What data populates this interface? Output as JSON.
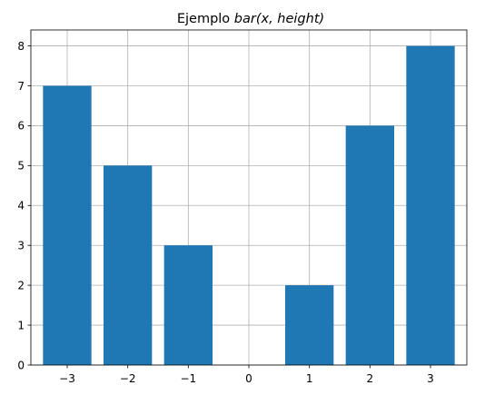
{
  "chart_data": {
    "type": "bar",
    "title_prefix": "Ejemplo ",
    "title_math": "bar(x, height)",
    "xlabel": "",
    "ylabel": "",
    "x": [
      -3,
      -2,
      -1,
      0,
      1,
      2,
      3
    ],
    "values": [
      7,
      5,
      3,
      0,
      2,
      6,
      8
    ],
    "bar_width": 0.8,
    "xlim": [
      -3.6,
      3.6
    ],
    "ylim": [
      0,
      8.4
    ],
    "xticks": [
      -3,
      -2,
      -1,
      0,
      1,
      2,
      3
    ],
    "xtick_labels": [
      "−3",
      "−2",
      "−1",
      "0",
      "1",
      "2",
      "3"
    ],
    "yticks": [
      0,
      1,
      2,
      3,
      4,
      5,
      6,
      7,
      8
    ],
    "ytick_labels": [
      "0",
      "1",
      "2",
      "3",
      "4",
      "5",
      "6",
      "7",
      "8"
    ],
    "grid": true,
    "legend": "none",
    "bar_color": "#1f77b4",
    "grid_color": "#b0b0b0"
  }
}
